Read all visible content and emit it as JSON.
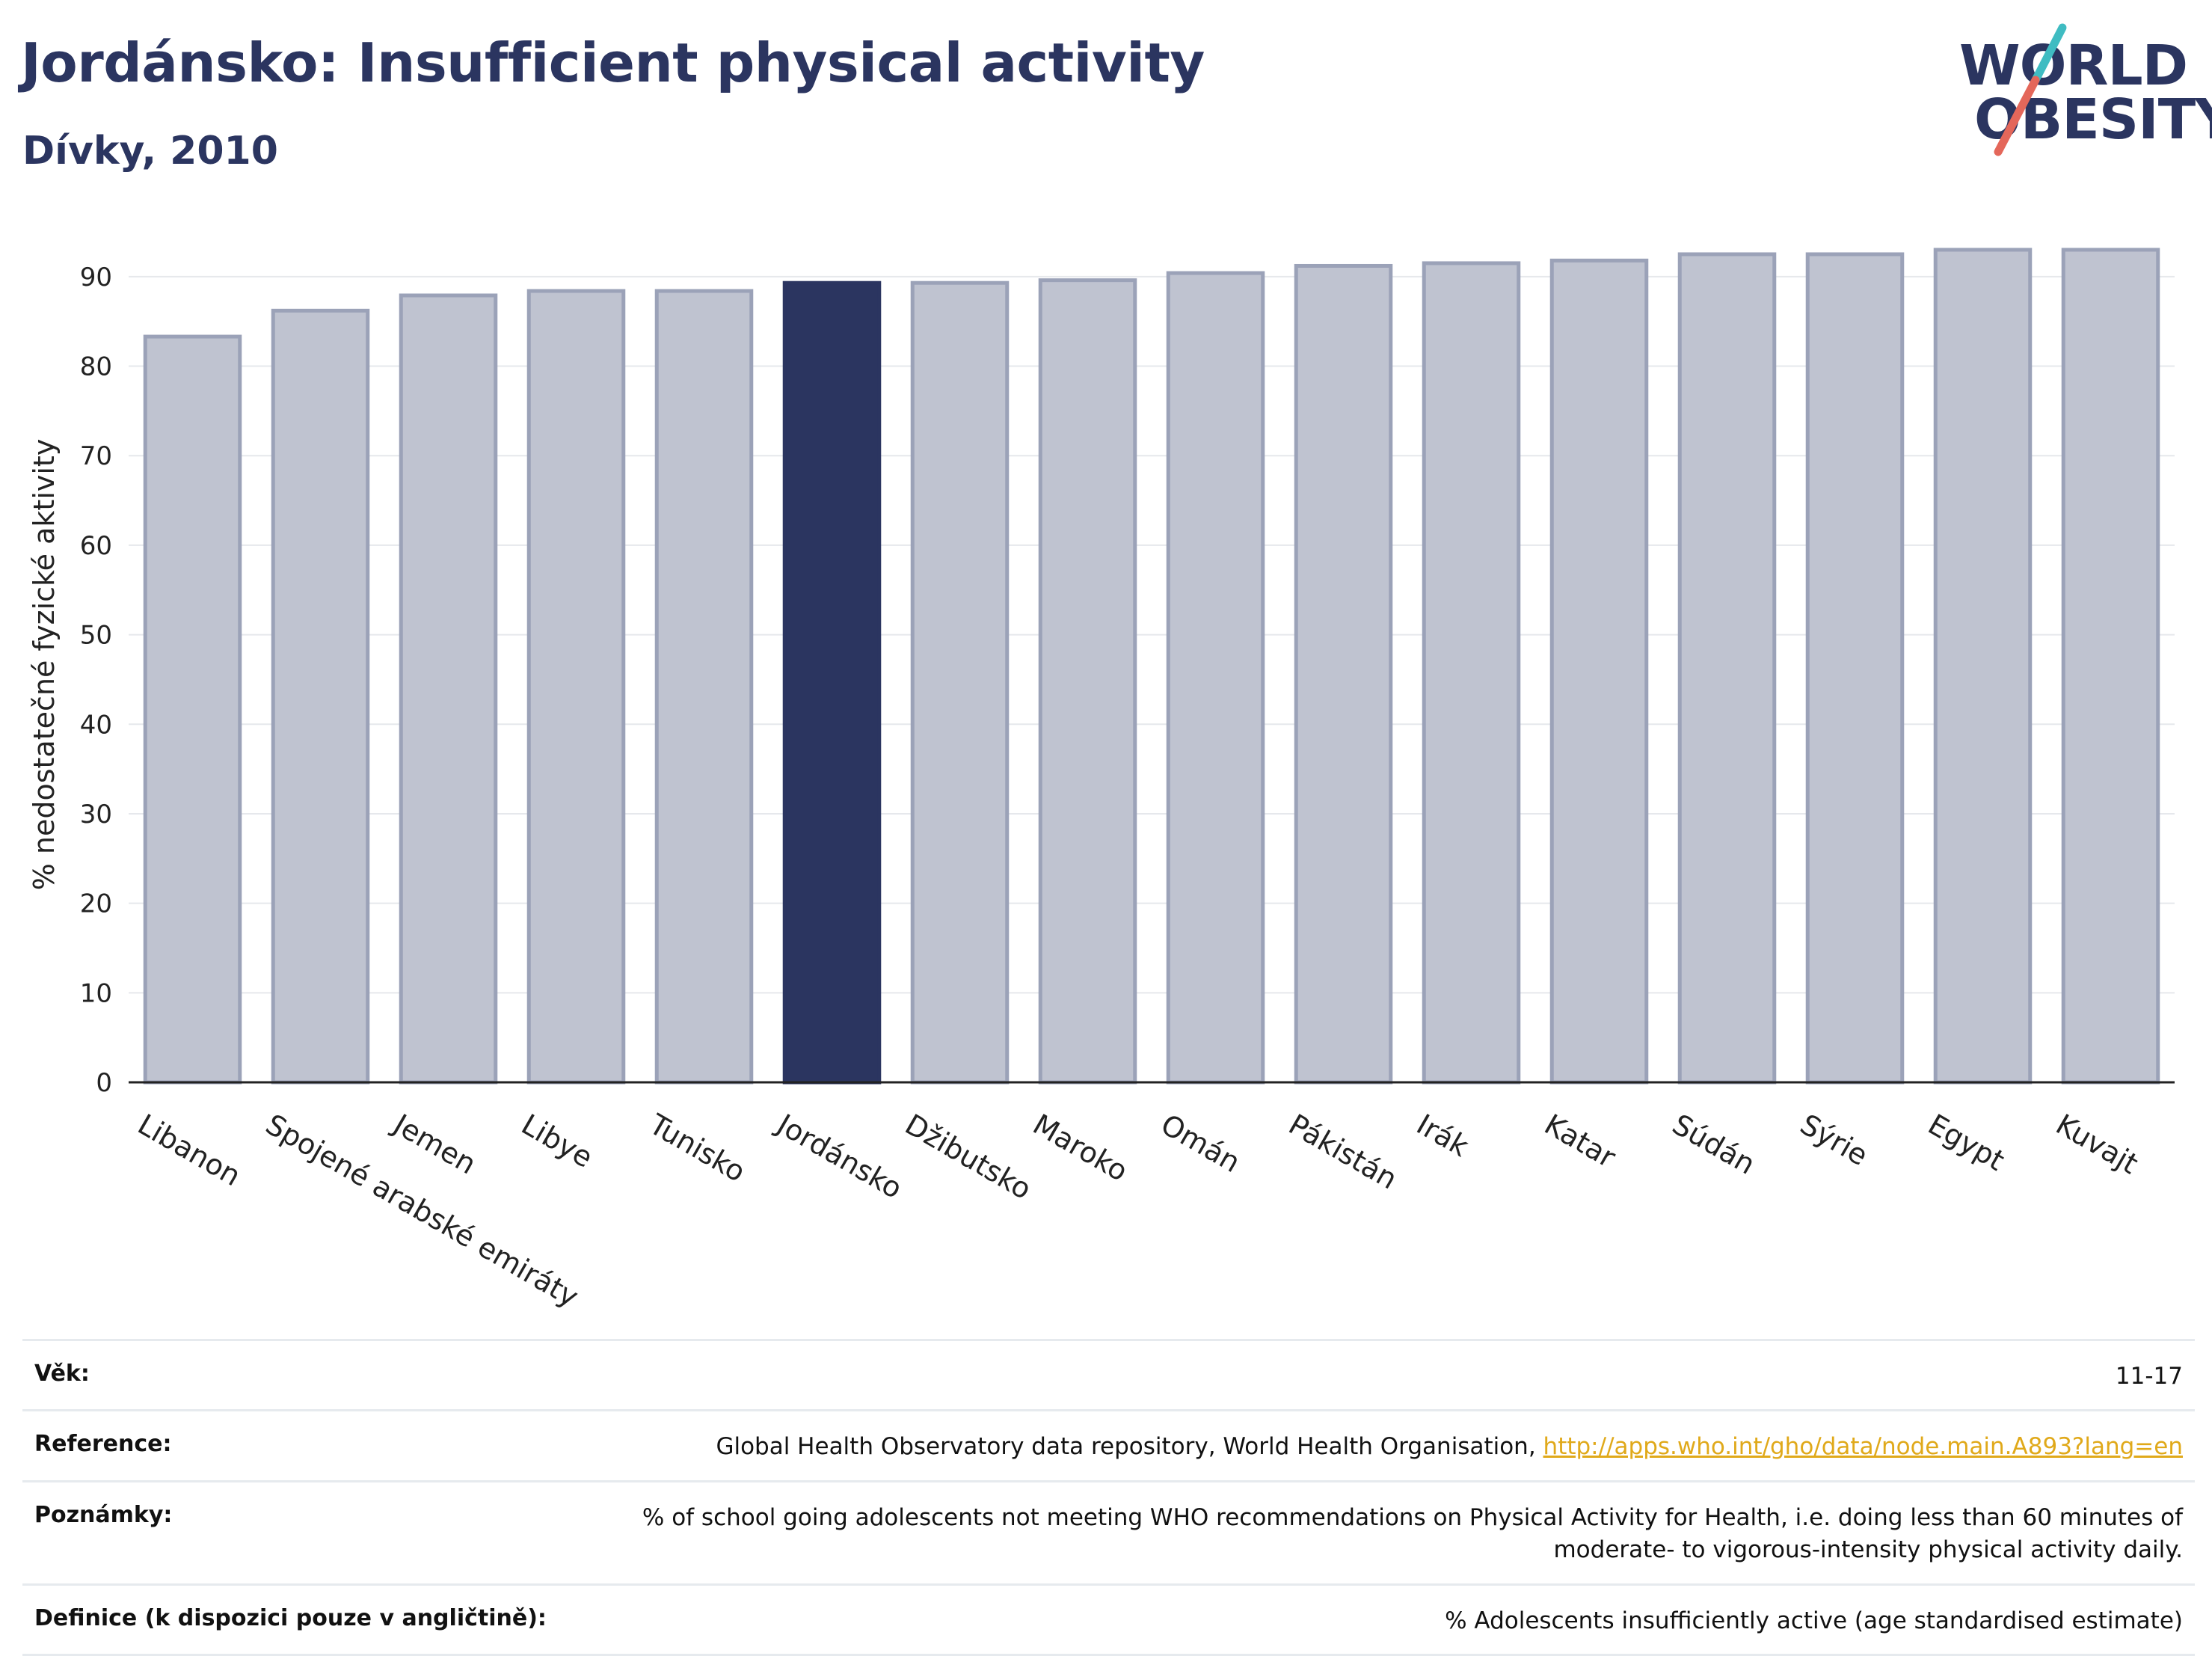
{
  "header": {
    "title": "Jordánsko: Insufficient physical activity",
    "subtitle": "Dívky, 2010"
  },
  "logo": {
    "line1": "WORLD",
    "line2": "OBESITY",
    "accent_teal": "#3fbcc2",
    "accent_coral": "#e4675a"
  },
  "colors": {
    "bar_default": "#bfc3d0",
    "bar_border": "#9ba2b8",
    "bar_highlight": "#2b3560",
    "text_dark": "#2b3560"
  },
  "chart_data": {
    "type": "bar",
    "ylabel": "% nedostatečné fyzické aktivity",
    "ylim": [
      0,
      95
    ],
    "yticks": [
      0,
      10,
      20,
      30,
      40,
      50,
      60,
      70,
      80,
      90
    ],
    "grid": true,
    "highlight": "Jordánsko",
    "categories": [
      "Libanon",
      "Spojené arabské emiráty",
      "Jemen",
      "Libye",
      "Tunisko",
      "Jordánsko",
      "Džibutsko",
      "Maroko",
      "Omán",
      "Pákistán",
      "Irák",
      "Katar",
      "Súdán",
      "Sýrie",
      "Egypt",
      "Kuvajt"
    ],
    "values": [
      83.3,
      86.2,
      87.9,
      88.4,
      88.4,
      89.3,
      89.3,
      89.6,
      90.4,
      91.2,
      91.5,
      91.8,
      92.5,
      92.5,
      93.0,
      93.0
    ]
  },
  "info_table": [
    {
      "label": "Věk:",
      "value": "11-17"
    },
    {
      "label": "Reference:",
      "value": "Global Health Observatory data repository, World Health Organisation, ",
      "link": "http://apps.who.int/gho/data/node.main.A893?lang=en"
    },
    {
      "label": "Poznámky:",
      "value": "% of school going adolescents not meeting WHO recommendations on Physical Activity for Health, i.e. doing less than 60 minutes of moderate- to vigorous-intensity physical activity daily."
    },
    {
      "label": "Definice (k dispozici pouze v angličtině):",
      "value": "% Adolescents insufficiently active (age standardised estimate)"
    }
  ]
}
